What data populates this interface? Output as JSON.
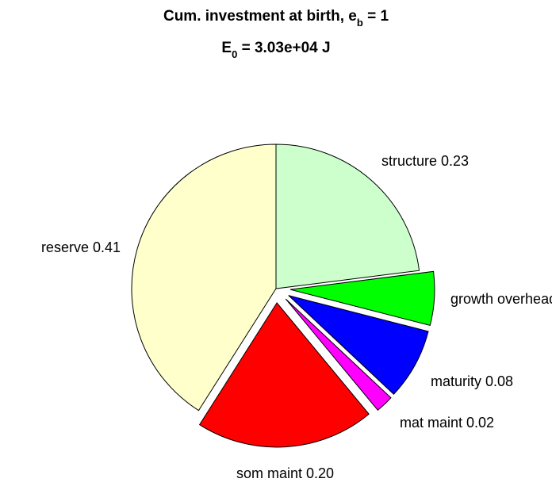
{
  "chart_data": {
    "type": "pie",
    "title": {
      "line1_prefix": "Cum. investment at birth, e",
      "line1_sub": "b",
      "line1_suffix": " = 1",
      "line2_prefix": "E",
      "line2_sub": "0",
      "line2_suffix": " = 3.03e+04 J"
    },
    "slices": [
      {
        "label": "structure 0.23",
        "value": 0.23,
        "color": "#ccffcc",
        "exploded": false
      },
      {
        "label": "growth overhead",
        "value": 0.06,
        "color": "#00ff00",
        "exploded": true
      },
      {
        "label": "maturity 0.08",
        "value": 0.08,
        "color": "#0000ff",
        "exploded": true
      },
      {
        "label": "mat maint 0.02",
        "value": 0.02,
        "color": "#ff00ff",
        "exploded": true
      },
      {
        "label": "som maint 0.20",
        "value": 0.2,
        "color": "#ff0000",
        "exploded": true
      },
      {
        "label": "reserve 0.41",
        "value": 0.41,
        "color": "#ffffcc",
        "exploded": false
      }
    ],
    "start": "12 o'clock",
    "direction": "clockwise",
    "legend": "none",
    "grid": false
  }
}
